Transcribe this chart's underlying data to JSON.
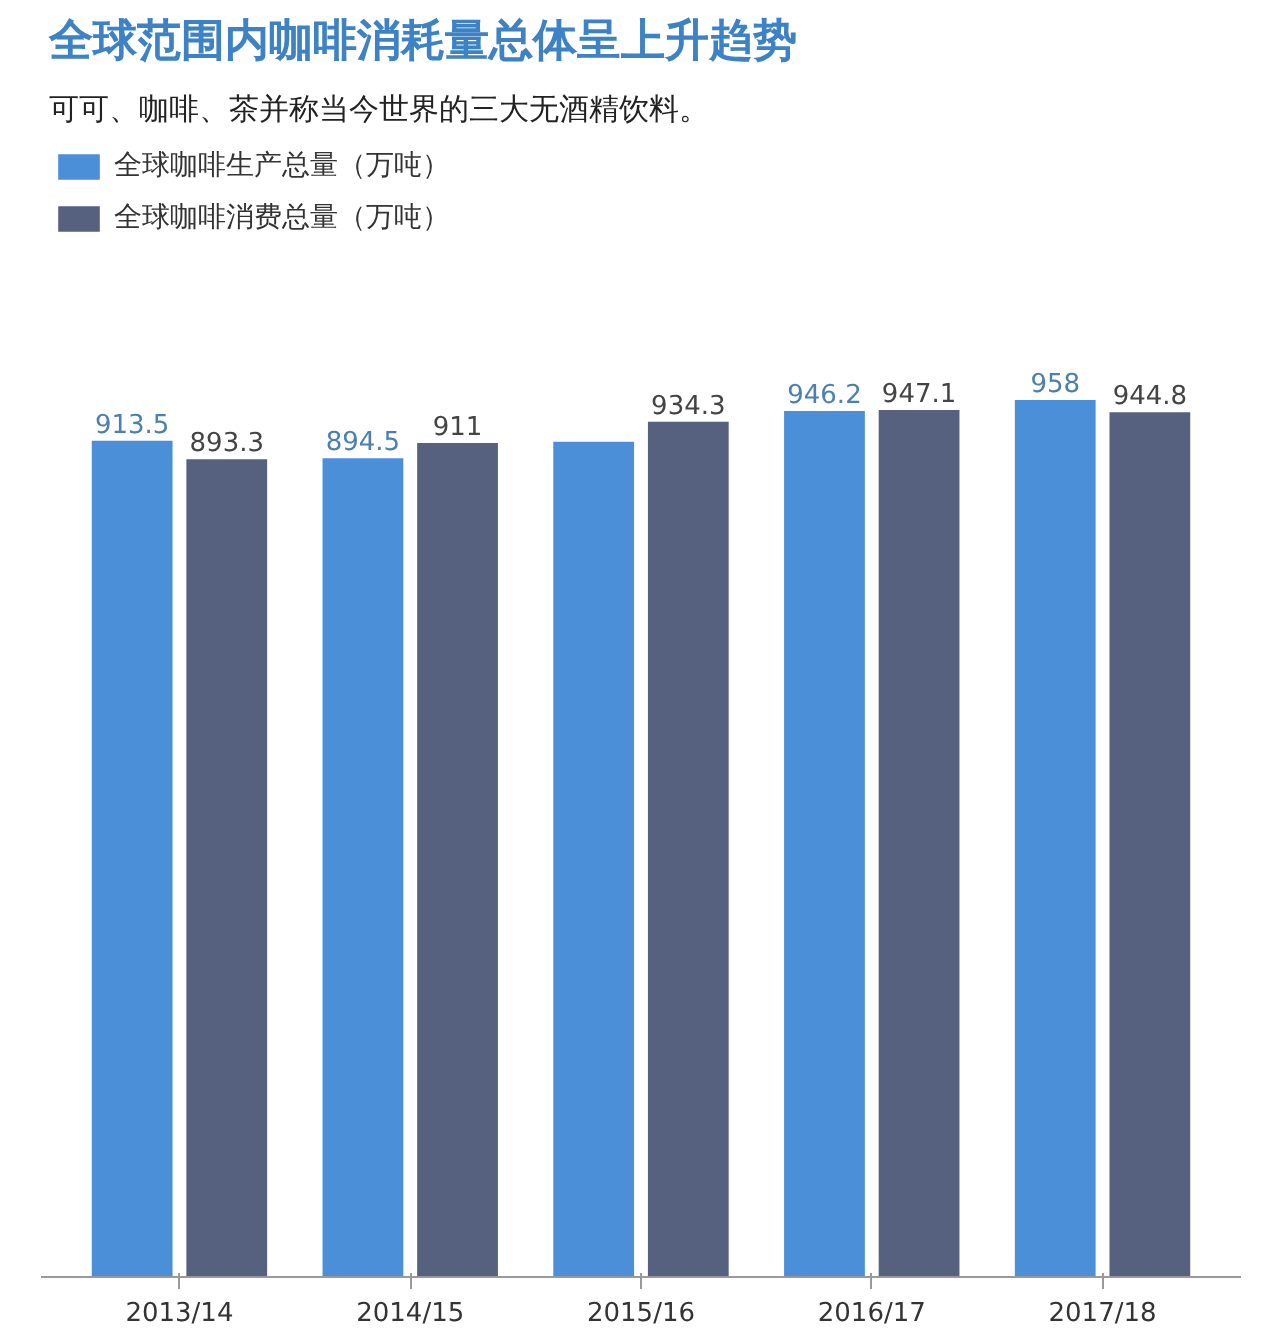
{
  "chart_data": {
    "type": "bar",
    "title": "全球范围内咖啡消耗量总体呈上升趋势",
    "subtitle": "可可、咖啡、茶并称当今世界的三大无酒精饮料。",
    "categories": [
      "2013/14",
      "2014/15",
      "2015/16",
      "2016/17",
      "2017/18"
    ],
    "series": [
      {
        "name": "全球咖啡生产总量（万吨）",
        "color": "#4a8fd8",
        "values": [
          913.5,
          894.5,
          912.4,
          946.2,
          958
        ],
        "value_labels": [
          "913.5",
          "894.5",
          null,
          "946.2",
          "958"
        ]
      },
      {
        "name": "全球咖啡消费总量（万吨）",
        "color": "#56617f",
        "values": [
          893.3,
          911,
          934.3,
          947.1,
          944.8
        ],
        "value_labels": [
          "893.3",
          "911",
          "934.3",
          "947.1",
          "944.8"
        ]
      }
    ],
    "legend": "top left"
  }
}
